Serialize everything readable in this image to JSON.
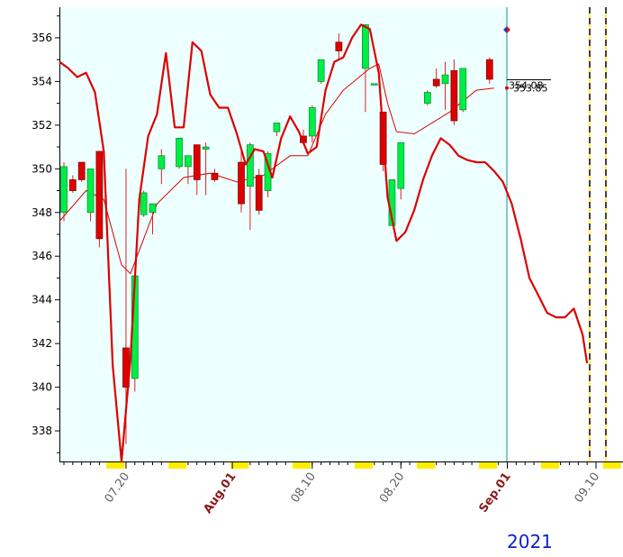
{
  "chart_data": {
    "type": "candlestick",
    "y_axis": {
      "ylim": [
        336.6,
        357.4
      ],
      "tick_labels": [
        "338",
        "340",
        "342",
        "344",
        "346",
        "348",
        "350",
        "352",
        "354",
        "356"
      ]
    },
    "x_axis": {
      "tick_labels": [
        {
          "text": "07.20",
          "color": "#606060",
          "bold": false,
          "index": 7
        },
        {
          "text": "Aug.01",
          "color": "#8b1a1a",
          "bold": true,
          "index": 19
        },
        {
          "text": "08.10",
          "color": "#606060",
          "bold": false,
          "index": 28
        },
        {
          "text": "08.20",
          "color": "#606060",
          "bold": false,
          "index": 38
        },
        {
          "text": "Sep.01",
          "color": "#8b1a1a",
          "bold": true,
          "index": 50
        },
        {
          "text": "09.10",
          "color": "#606060",
          "bold": false,
          "index": 60
        }
      ],
      "year_label": "2021"
    },
    "candles": [
      {
        "i": 0,
        "o": 348.0,
        "h": 350.3,
        "l": 347.6,
        "c": 350.1
      },
      {
        "i": 1,
        "o": 349.5,
        "h": 349.7,
        "l": 348.9,
        "c": 349.0
      },
      {
        "i": 2,
        "o": 350.3,
        "h": 350.3,
        "l": 349.4,
        "c": 349.5
      },
      {
        "i": 3,
        "o": 348.0,
        "h": 350.0,
        "l": 347.6,
        "c": 350.0
      },
      {
        "i": 4,
        "o": 350.8,
        "h": 350.8,
        "l": 346.4,
        "c": 346.8
      },
      {
        "i": 7,
        "o": 341.8,
        "h": 350.0,
        "l": 337.4,
        "c": 340.0
      },
      {
        "i": 8,
        "o": 340.4,
        "h": 345.1,
        "l": 339.8,
        "c": 345.1
      },
      {
        "i": 9,
        "o": 347.9,
        "h": 349.0,
        "l": 347.8,
        "c": 348.9
      },
      {
        "i": 10,
        "o": 348.0,
        "h": 348.4,
        "l": 347.0,
        "c": 348.4
      },
      {
        "i": 11,
        "o": 350.0,
        "h": 350.9,
        "l": 349.3,
        "c": 350.6
      },
      {
        "i": 13,
        "o": 350.1,
        "h": 351.4,
        "l": 350.0,
        "c": 351.4
      },
      {
        "i": 14,
        "o": 350.1,
        "h": 350.6,
        "l": 349.3,
        "c": 350.6
      },
      {
        "i": 15,
        "o": 351.1,
        "h": 351.1,
        "l": 348.8,
        "c": 349.5
      },
      {
        "i": 16,
        "o": 350.9,
        "h": 351.2,
        "l": 348.8,
        "c": 351.0
      },
      {
        "i": 17,
        "o": 349.8,
        "h": 350.0,
        "l": 349.4,
        "c": 349.5
      },
      {
        "i": 20,
        "o": 350.3,
        "h": 350.9,
        "l": 348.0,
        "c": 348.4
      },
      {
        "i": 21,
        "o": 349.2,
        "h": 351.2,
        "l": 347.2,
        "c": 351.1
      },
      {
        "i": 22,
        "o": 349.7,
        "h": 350.0,
        "l": 347.9,
        "c": 348.1
      },
      {
        "i": 23,
        "o": 349.0,
        "h": 350.8,
        "l": 348.7,
        "c": 350.7
      },
      {
        "i": 24,
        "o": 351.7,
        "h": 352.1,
        "l": 351.5,
        "c": 352.1
      },
      {
        "i": 27,
        "o": 351.5,
        "h": 351.8,
        "l": 351.1,
        "c": 351.2
      },
      {
        "i": 28,
        "o": 351.5,
        "h": 352.9,
        "l": 351.2,
        "c": 352.8
      },
      {
        "i": 29,
        "o": 354.0,
        "h": 355.0,
        "l": 353.9,
        "c": 355.0
      },
      {
        "i": 31,
        "o": 355.8,
        "h": 356.2,
        "l": 355.0,
        "c": 355.4
      },
      {
        "i": 34,
        "o": 354.6,
        "h": 356.6,
        "l": 352.6,
        "c": 356.6
      },
      {
        "i": 35,
        "o": 353.9,
        "h": 353.9,
        "l": 353.9,
        "c": 353.9
      },
      {
        "i": 36,
        "o": 352.6,
        "h": 352.6,
        "l": 349.9,
        "c": 350.2
      },
      {
        "i": 37,
        "o": 347.4,
        "h": 349.5,
        "l": 347.4,
        "c": 349.5
      },
      {
        "i": 38,
        "o": 349.1,
        "h": 351.2,
        "l": 348.6,
        "c": 351.2
      },
      {
        "i": 41,
        "o": 353.0,
        "h": 353.6,
        "l": 352.9,
        "c": 353.5
      },
      {
        "i": 42,
        "o": 354.1,
        "h": 354.6,
        "l": 353.7,
        "c": 353.8
      },
      {
        "i": 43,
        "o": 353.9,
        "h": 354.9,
        "l": 352.7,
        "c": 354.3
      },
      {
        "i": 44,
        "o": 354.5,
        "h": 355.0,
        "l": 352.0,
        "c": 352.2
      },
      {
        "i": 45,
        "o": 352.7,
        "h": 354.6,
        "l": 352.6,
        "c": 354.6
      },
      {
        "i": 48,
        "o": 355.0,
        "h": 355.1,
        "l": 353.9,
        "c": 354.1
      }
    ],
    "thick_line": [
      [
        -0.5,
        354.9
      ],
      [
        0.5,
        354.6
      ],
      [
        1.5,
        354.2
      ],
      [
        2.5,
        354.4
      ],
      [
        3.5,
        353.5
      ],
      [
        4.5,
        350.8
      ],
      [
        5.5,
        341.0
      ],
      [
        6.5,
        336.6
      ],
      [
        7.5,
        341.3
      ],
      [
        8.5,
        348.6
      ],
      [
        9.5,
        351.5
      ],
      [
        10.5,
        352.5
      ],
      [
        11.5,
        355.3
      ],
      [
        12.5,
        351.9
      ],
      [
        13.5,
        351.9
      ],
      [
        14.5,
        355.8
      ],
      [
        15.5,
        355.4
      ],
      [
        16.5,
        353.4
      ],
      [
        17.5,
        352.8
      ],
      [
        18.5,
        352.8
      ],
      [
        19.5,
        351.6
      ],
      [
        20.5,
        350.2
      ],
      [
        21.5,
        350.9
      ],
      [
        22.5,
        350.8
      ],
      [
        23.5,
        349.6
      ],
      [
        24.5,
        351.4
      ],
      [
        25.5,
        352.4
      ],
      [
        26.5,
        351.7
      ],
      [
        27.5,
        350.7
      ],
      [
        28.5,
        351.0
      ],
      [
        29.5,
        353.6
      ],
      [
        30.5,
        354.9
      ],
      [
        31.5,
        355.1
      ],
      [
        32.5,
        356.0
      ],
      [
        33.5,
        356.6
      ],
      [
        34.5,
        356.4
      ],
      [
        35.5,
        354.4
      ],
      [
        36.5,
        348.7
      ],
      [
        37.5,
        346.7
      ],
      [
        38.5,
        347.1
      ],
      [
        39.5,
        348.1
      ],
      [
        40.5,
        349.5
      ],
      [
        41.5,
        350.6
      ],
      [
        42.5,
        351.4
      ],
      [
        43.5,
        351.1
      ],
      [
        44.5,
        350.6
      ],
      [
        45.5,
        350.4
      ],
      [
        46.5,
        350.3
      ],
      [
        47.5,
        350.3
      ],
      [
        48.5,
        349.9
      ],
      [
        49.5,
        349.4
      ],
      [
        50.5,
        348.4
      ],
      [
        51.5,
        346.8
      ],
      [
        52.5,
        345.0
      ],
      [
        53.5,
        344.2
      ],
      [
        54.5,
        343.4
      ],
      [
        55.5,
        343.2
      ],
      [
        56.5,
        343.2
      ],
      [
        57.5,
        343.6
      ],
      [
        58.5,
        342.4
      ],
      [
        59.0,
        341.1
      ]
    ],
    "thin_line": [
      [
        -0.5,
        347.6
      ],
      [
        2.5,
        349.0
      ],
      [
        4.5,
        348.6
      ],
      [
        6.5,
        345.6
      ],
      [
        7.5,
        345.2
      ],
      [
        10.5,
        348.4
      ],
      [
        13.5,
        349.6
      ],
      [
        16.5,
        349.8
      ],
      [
        19.5,
        349.4
      ],
      [
        22.5,
        349.7
      ],
      [
        25.5,
        350.6
      ],
      [
        27.5,
        350.6
      ],
      [
        29.5,
        352.5
      ],
      [
        31.5,
        353.6
      ],
      [
        34.5,
        354.6
      ],
      [
        35.5,
        354.8
      ],
      [
        36.5,
        353.0
      ],
      [
        37.5,
        351.7
      ],
      [
        39.5,
        351.6
      ],
      [
        43.5,
        352.6
      ],
      [
        46.5,
        353.6
      ],
      [
        48.5,
        353.7
      ]
    ],
    "price_labels": [
      "354.08",
      "353.85"
    ],
    "colors": {
      "up": "#00ee44",
      "down": "#dd0000",
      "line": "#dd0000",
      "plot_bg": "#eeffff",
      "cursor": "#0a8ca0"
    }
  }
}
